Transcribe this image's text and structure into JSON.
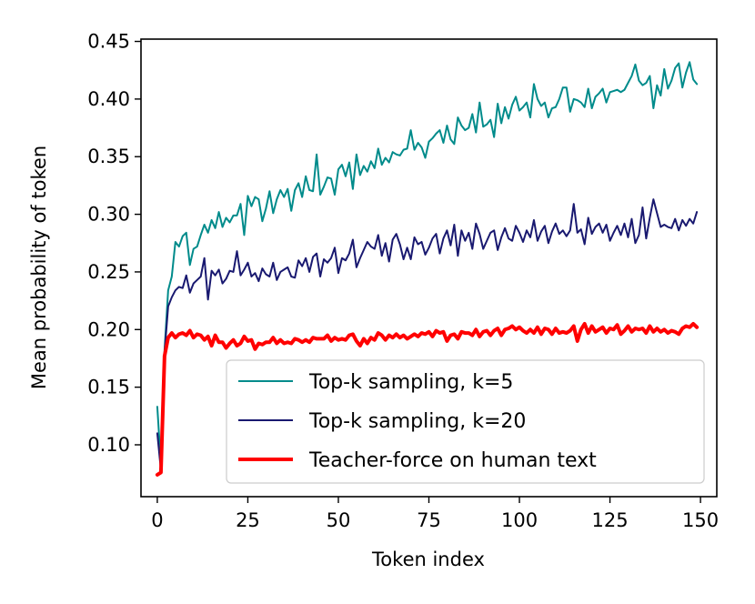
{
  "chart_data": {
    "type": "line",
    "title": "",
    "xlabel": "Token index",
    "ylabel": "Mean probability of token",
    "xlim": [
      -4.5,
      154.5
    ],
    "ylim": [
      0.055,
      0.452
    ],
    "xticks": [
      0,
      25,
      50,
      75,
      100,
      125,
      150
    ],
    "yticks": [
      0.1,
      0.15,
      0.2,
      0.25,
      0.3,
      0.35,
      0.4,
      0.45
    ],
    "xtick_labels": [
      "0",
      "25",
      "50",
      "75",
      "100",
      "125",
      "150"
    ],
    "ytick_labels": [
      "0.10",
      "0.15",
      "0.20",
      "0.25",
      "0.30",
      "0.35",
      "0.40",
      "0.45"
    ],
    "grid": false,
    "legend_position": "lower right",
    "series": [
      {
        "name": "Top-k sampling, k=5",
        "color": "#008b8b",
        "line_width": 2,
        "x": [
          0,
          1,
          2,
          3,
          4,
          5,
          6,
          7,
          8,
          9,
          10,
          11,
          12,
          13,
          14,
          15,
          16,
          17,
          18,
          19,
          20,
          21,
          22,
          23,
          24,
          25,
          26,
          27,
          28,
          29,
          30,
          31,
          32,
          33,
          34,
          35,
          36,
          37,
          38,
          39,
          40,
          41,
          42,
          43,
          44,
          45,
          46,
          47,
          48,
          49,
          50,
          51,
          52,
          53,
          54,
          55,
          56,
          57,
          58,
          59,
          60,
          61,
          62,
          63,
          64,
          65,
          66,
          67,
          68,
          69,
          70,
          71,
          72,
          73,
          74,
          75,
          76,
          77,
          78,
          79,
          80,
          81,
          82,
          83,
          84,
          85,
          86,
          87,
          88,
          89,
          90,
          91,
          92,
          93,
          94,
          95,
          96,
          97,
          98,
          99,
          100,
          101,
          102,
          103,
          104,
          105,
          106,
          107,
          108,
          109,
          110,
          111,
          112,
          113,
          114,
          115,
          116,
          117,
          118,
          119,
          120,
          121,
          122,
          123,
          124,
          125,
          126,
          127,
          128,
          129,
          130,
          131,
          132,
          133,
          134,
          135,
          136,
          137,
          138,
          139,
          140,
          141,
          142,
          143,
          144,
          145,
          146,
          147,
          148,
          149
        ],
        "values": [
          0.133,
          0.083,
          0.182,
          0.234,
          0.246,
          0.276,
          0.272,
          0.281,
          0.284,
          0.256,
          0.27,
          0.272,
          0.282,
          0.291,
          0.284,
          0.295,
          0.288,
          0.302,
          0.289,
          0.297,
          0.293,
          0.299,
          0.299,
          0.309,
          0.282,
          0.316,
          0.307,
          0.315,
          0.313,
          0.294,
          0.305,
          0.32,
          0.301,
          0.313,
          0.321,
          0.315,
          0.322,
          0.303,
          0.321,
          0.327,
          0.315,
          0.333,
          0.321,
          0.32,
          0.352,
          0.317,
          0.324,
          0.332,
          0.331,
          0.317,
          0.339,
          0.343,
          0.333,
          0.345,
          0.322,
          0.352,
          0.334,
          0.342,
          0.337,
          0.346,
          0.34,
          0.357,
          0.343,
          0.349,
          0.345,
          0.354,
          0.352,
          0.351,
          0.356,
          0.357,
          0.373,
          0.356,
          0.362,
          0.358,
          0.349,
          0.363,
          0.366,
          0.37,
          0.373,
          0.362,
          0.377,
          0.365,
          0.361,
          0.384,
          0.377,
          0.373,
          0.375,
          0.387,
          0.371,
          0.397,
          0.376,
          0.378,
          0.382,
          0.367,
          0.396,
          0.379,
          0.393,
          0.383,
          0.395,
          0.402,
          0.39,
          0.393,
          0.397,
          0.384,
          0.413,
          0.4,
          0.394,
          0.397,
          0.384,
          0.392,
          0.393,
          0.4,
          0.41,
          0.41,
          0.389,
          0.4,
          0.399,
          0.397,
          0.393,
          0.409,
          0.392,
          0.402,
          0.405,
          0.409,
          0.397,
          0.406,
          0.407,
          0.408,
          0.406,
          0.408,
          0.414,
          0.42,
          0.43,
          0.416,
          0.412,
          0.414,
          0.42,
          0.392,
          0.412,
          0.403,
          0.426,
          0.409,
          0.416,
          0.427,
          0.431,
          0.41,
          0.423,
          0.432,
          0.417,
          0.413
        ]
      },
      {
        "name": "Top-k sampling, k=20",
        "color": "#191970",
        "line_width": 2,
        "x": [
          0,
          1,
          2,
          3,
          4,
          5,
          6,
          7,
          8,
          9,
          10,
          11,
          12,
          13,
          14,
          15,
          16,
          17,
          18,
          19,
          20,
          21,
          22,
          23,
          24,
          25,
          26,
          27,
          28,
          29,
          30,
          31,
          32,
          33,
          34,
          35,
          36,
          37,
          38,
          39,
          40,
          41,
          42,
          43,
          44,
          45,
          46,
          47,
          48,
          49,
          50,
          51,
          52,
          53,
          54,
          55,
          56,
          57,
          58,
          59,
          60,
          61,
          62,
          63,
          64,
          65,
          66,
          67,
          68,
          69,
          70,
          71,
          72,
          73,
          74,
          75,
          76,
          77,
          78,
          79,
          80,
          81,
          82,
          83,
          84,
          85,
          86,
          87,
          88,
          89,
          90,
          91,
          92,
          93,
          94,
          95,
          96,
          97,
          98,
          99,
          100,
          101,
          102,
          103,
          104,
          105,
          106,
          107,
          108,
          109,
          110,
          111,
          112,
          113,
          114,
          115,
          116,
          117,
          118,
          119,
          120,
          121,
          122,
          123,
          124,
          125,
          126,
          127,
          128,
          129,
          130,
          131,
          132,
          133,
          134,
          135,
          136,
          137,
          138,
          139,
          140,
          141,
          142,
          143,
          144,
          145,
          146,
          147,
          148,
          149
        ],
        "values": [
          0.11,
          0.078,
          0.18,
          0.22,
          0.228,
          0.234,
          0.237,
          0.236,
          0.247,
          0.232,
          0.24,
          0.243,
          0.246,
          0.262,
          0.226,
          0.251,
          0.247,
          0.252,
          0.24,
          0.244,
          0.251,
          0.25,
          0.268,
          0.247,
          0.252,
          0.258,
          0.246,
          0.249,
          0.242,
          0.253,
          0.248,
          0.246,
          0.258,
          0.243,
          0.25,
          0.252,
          0.254,
          0.246,
          0.245,
          0.26,
          0.255,
          0.262,
          0.25,
          0.263,
          0.266,
          0.246,
          0.261,
          0.258,
          0.262,
          0.271,
          0.249,
          0.262,
          0.26,
          0.266,
          0.278,
          0.254,
          0.262,
          0.269,
          0.276,
          0.272,
          0.27,
          0.282,
          0.264,
          0.275,
          0.259,
          0.278,
          0.283,
          0.274,
          0.261,
          0.271,
          0.261,
          0.28,
          0.274,
          0.276,
          0.265,
          0.271,
          0.279,
          0.283,
          0.266,
          0.279,
          0.286,
          0.273,
          0.291,
          0.264,
          0.286,
          0.277,
          0.284,
          0.27,
          0.292,
          0.283,
          0.27,
          0.277,
          0.284,
          0.286,
          0.269,
          0.28,
          0.288,
          0.279,
          0.277,
          0.29,
          0.284,
          0.276,
          0.286,
          0.28,
          0.295,
          0.277,
          0.285,
          0.29,
          0.275,
          0.285,
          0.292,
          0.283,
          0.286,
          0.281,
          0.286,
          0.309,
          0.284,
          0.287,
          0.274,
          0.297,
          0.283,
          0.289,
          0.292,
          0.284,
          0.291,
          0.277,
          0.284,
          0.29,
          0.282,
          0.292,
          0.28,
          0.296,
          0.275,
          0.282,
          0.306,
          0.279,
          0.297,
          0.313,
          0.301,
          0.289,
          0.291,
          0.289,
          0.288,
          0.296,
          0.286,
          0.295,
          0.29,
          0.296,
          0.292,
          0.302
        ]
      },
      {
        "name": "Teacher-force on human text",
        "color": "#ff0000",
        "line_width": 4,
        "x": [
          0,
          1,
          2,
          3,
          4,
          5,
          6,
          7,
          8,
          9,
          10,
          11,
          12,
          13,
          14,
          15,
          16,
          17,
          18,
          19,
          20,
          21,
          22,
          23,
          24,
          25,
          26,
          27,
          28,
          29,
          30,
          31,
          32,
          33,
          34,
          35,
          36,
          37,
          38,
          39,
          40,
          41,
          42,
          43,
          44,
          45,
          46,
          47,
          48,
          49,
          50,
          51,
          52,
          53,
          54,
          55,
          56,
          57,
          58,
          59,
          60,
          61,
          62,
          63,
          64,
          65,
          66,
          67,
          68,
          69,
          70,
          71,
          72,
          73,
          74,
          75,
          76,
          77,
          78,
          79,
          80,
          81,
          82,
          83,
          84,
          85,
          86,
          87,
          88,
          89,
          90,
          91,
          92,
          93,
          94,
          95,
          96,
          97,
          98,
          99,
          100,
          101,
          102,
          103,
          104,
          105,
          106,
          107,
          108,
          109,
          110,
          111,
          112,
          113,
          114,
          115,
          116,
          117,
          118,
          119,
          120,
          121,
          122,
          123,
          124,
          125,
          126,
          127,
          128,
          129,
          130,
          131,
          132,
          133,
          134,
          135,
          136,
          137,
          138,
          139,
          140,
          141,
          142,
          143,
          144,
          145,
          146,
          147,
          148,
          149
        ],
        "values": [
          0.074,
          0.076,
          0.177,
          0.193,
          0.197,
          0.193,
          0.196,
          0.197,
          0.195,
          0.199,
          0.193,
          0.196,
          0.195,
          0.191,
          0.194,
          0.186,
          0.195,
          0.189,
          0.189,
          0.184,
          0.188,
          0.191,
          0.186,
          0.188,
          0.194,
          0.19,
          0.191,
          0.183,
          0.188,
          0.187,
          0.189,
          0.189,
          0.193,
          0.188,
          0.191,
          0.188,
          0.189,
          0.188,
          0.192,
          0.191,
          0.189,
          0.191,
          0.189,
          0.193,
          0.192,
          0.192,
          0.192,
          0.195,
          0.19,
          0.193,
          0.191,
          0.192,
          0.191,
          0.195,
          0.196,
          0.19,
          0.186,
          0.192,
          0.188,
          0.193,
          0.191,
          0.197,
          0.195,
          0.191,
          0.195,
          0.193,
          0.196,
          0.193,
          0.195,
          0.192,
          0.194,
          0.196,
          0.194,
          0.197,
          0.196,
          0.198,
          0.194,
          0.199,
          0.197,
          0.198,
          0.19,
          0.195,
          0.196,
          0.192,
          0.198,
          0.197,
          0.197,
          0.195,
          0.2,
          0.194,
          0.198,
          0.199,
          0.195,
          0.199,
          0.201,
          0.195,
          0.2,
          0.201,
          0.203,
          0.2,
          0.202,
          0.199,
          0.197,
          0.2,
          0.197,
          0.202,
          0.196,
          0.201,
          0.2,
          0.196,
          0.201,
          0.197,
          0.198,
          0.197,
          0.199,
          0.203,
          0.19,
          0.2,
          0.205,
          0.197,
          0.203,
          0.198,
          0.2,
          0.202,
          0.197,
          0.201,
          0.2,
          0.204,
          0.196,
          0.199,
          0.203,
          0.198,
          0.201,
          0.2,
          0.201,
          0.197,
          0.203,
          0.198,
          0.201,
          0.198,
          0.2,
          0.197,
          0.199,
          0.198,
          0.196,
          0.201,
          0.203,
          0.202,
          0.205,
          0.202
        ]
      }
    ]
  }
}
